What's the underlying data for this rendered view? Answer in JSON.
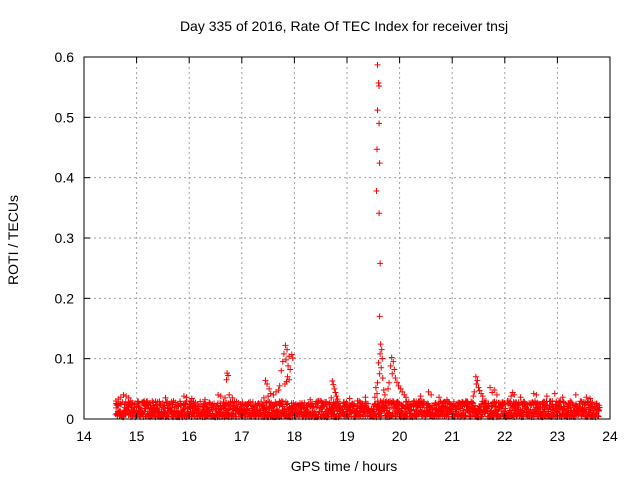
{
  "chart_data": {
    "type": "scatter",
    "title": "Day 335 of 2016, Rate Of TEC Index for receiver tnsj",
    "xlabel": "GPS time / hours",
    "ylabel": "ROTI / TECUs",
    "xlim": [
      14,
      24
    ],
    "ylim": [
      0,
      0.6
    ],
    "xticks": [
      "14",
      "15",
      "16",
      "17",
      "18",
      "19",
      "20",
      "21",
      "22",
      "23",
      "24"
    ],
    "yticks": [
      "0",
      "0.1",
      "0.2",
      "0.3",
      "0.4",
      "0.5",
      "0.6"
    ],
    "grid": true,
    "marker": "+",
    "color": "#ff0000",
    "series": [
      {
        "name": "ROTI",
        "points": [
          [
            19.58,
            0.587
          ],
          [
            19.6,
            0.557
          ],
          [
            19.61,
            0.552
          ],
          [
            19.58,
            0.512
          ],
          [
            19.61,
            0.49
          ],
          [
            19.57,
            0.447
          ],
          [
            19.62,
            0.424
          ],
          [
            19.56,
            0.378
          ],
          [
            19.61,
            0.341
          ],
          [
            19.63,
            0.258
          ],
          [
            19.62,
            0.17
          ],
          [
            19.64,
            0.124
          ],
          [
            19.66,
            0.115
          ],
          [
            19.63,
            0.108
          ],
          [
            19.67,
            0.1
          ],
          [
            19.6,
            0.093
          ],
          [
            19.65,
            0.085
          ],
          [
            19.62,
            0.075
          ],
          [
            19.68,
            0.068
          ],
          [
            19.58,
            0.06
          ],
          [
            19.55,
            0.052
          ],
          [
            19.7,
            0.048
          ],
          [
            19.57,
            0.042
          ],
          [
            19.72,
            0.04
          ],
          [
            19.53,
            0.036
          ],
          [
            19.85,
            0.102
          ],
          [
            19.88,
            0.095
          ],
          [
            19.83,
            0.088
          ],
          [
            19.9,
            0.082
          ],
          [
            19.86,
            0.075
          ],
          [
            19.92,
            0.068
          ],
          [
            19.95,
            0.061
          ],
          [
            19.98,
            0.055
          ],
          [
            20.02,
            0.05
          ],
          [
            20.05,
            0.045
          ],
          [
            20.09,
            0.04
          ],
          [
            20.12,
            0.036
          ],
          [
            19.8,
            0.06
          ],
          [
            19.78,
            0.05
          ],
          [
            17.83,
            0.122
          ],
          [
            17.86,
            0.115
          ],
          [
            17.8,
            0.108
          ],
          [
            17.9,
            0.104
          ],
          [
            17.84,
            0.098
          ],
          [
            17.95,
            0.107
          ],
          [
            17.97,
            0.101
          ],
          [
            17.78,
            0.095
          ],
          [
            17.88,
            0.088
          ],
          [
            17.92,
            0.082
          ],
          [
            17.75,
            0.08
          ],
          [
            17.87,
            0.07
          ],
          [
            17.9,
            0.065
          ],
          [
            17.85,
            0.062
          ],
          [
            17.82,
            0.058
          ],
          [
            17.72,
            0.055
          ],
          [
            17.7,
            0.048
          ],
          [
            17.65,
            0.045
          ],
          [
            17.6,
            0.04
          ],
          [
            17.55,
            0.042
          ],
          [
            17.5,
            0.038
          ],
          [
            17.45,
            0.064
          ],
          [
            17.48,
            0.058
          ],
          [
            17.52,
            0.05
          ],
          [
            17.42,
            0.035
          ],
          [
            16.72,
            0.076
          ],
          [
            16.74,
            0.072
          ],
          [
            16.71,
            0.065
          ],
          [
            16.76,
            0.04
          ],
          [
            16.68,
            0.035
          ],
          [
            16.55,
            0.04
          ],
          [
            16.6,
            0.038
          ],
          [
            16.82,
            0.035
          ],
          [
            18.72,
            0.063
          ],
          [
            18.74,
            0.057
          ],
          [
            18.76,
            0.05
          ],
          [
            18.78,
            0.044
          ],
          [
            18.8,
            0.038
          ],
          [
            18.82,
            0.033
          ],
          [
            18.7,
            0.035
          ],
          [
            21.45,
            0.07
          ],
          [
            21.48,
            0.064
          ],
          [
            21.46,
            0.058
          ],
          [
            21.5,
            0.052
          ],
          [
            21.52,
            0.047
          ],
          [
            21.55,
            0.042
          ],
          [
            21.42,
            0.045
          ],
          [
            21.4,
            0.038
          ],
          [
            21.58,
            0.038
          ],
          [
            21.72,
            0.052
          ],
          [
            21.8,
            0.048
          ],
          [
            21.76,
            0.044
          ],
          [
            21.85,
            0.04
          ],
          [
            22.15,
            0.044
          ],
          [
            22.18,
            0.04
          ],
          [
            22.12,
            0.038
          ],
          [
            22.3,
            0.036
          ],
          [
            22.55,
            0.042
          ],
          [
            22.6,
            0.04
          ],
          [
            22.8,
            0.038
          ],
          [
            22.95,
            0.042
          ],
          [
            23.1,
            0.036
          ],
          [
            23.35,
            0.04
          ],
          [
            23.55,
            0.036
          ],
          [
            23.62,
            0.034
          ],
          [
            20.55,
            0.045
          ],
          [
            20.6,
            0.04
          ],
          [
            20.4,
            0.038
          ],
          [
            20.75,
            0.036
          ],
          [
            20.9,
            0.032
          ],
          [
            14.75,
            0.04
          ],
          [
            14.8,
            0.038
          ],
          [
            14.7,
            0.036
          ],
          [
            14.85,
            0.035
          ],
          [
            14.65,
            0.033
          ],
          [
            15.55,
            0.035
          ],
          [
            15.9,
            0.038
          ],
          [
            15.95,
            0.036
          ],
          [
            16.05,
            0.034
          ],
          [
            16.3,
            0.032
          ],
          [
            18.3,
            0.032
          ],
          [
            18.5,
            0.03
          ],
          [
            19.05,
            0.034
          ],
          [
            19.2,
            0.03
          ],
          [
            19.35,
            0.036
          ],
          [
            15.2,
            0.03
          ],
          [
            15.4,
            0.028
          ],
          [
            15.7,
            0.03
          ]
        ]
      }
    ],
    "noise_band": {
      "x_start": 14.6,
      "x_end": 23.8,
      "count": 1900,
      "typical_min": 0.003,
      "typical_max": 0.03
    }
  }
}
